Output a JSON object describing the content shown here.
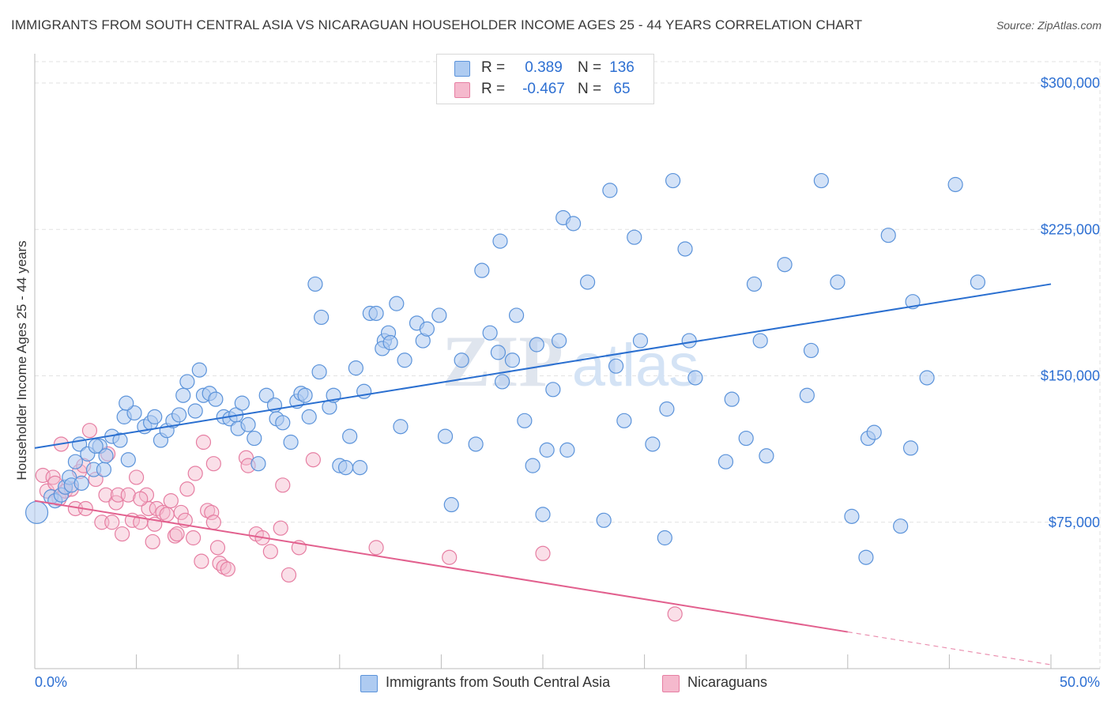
{
  "title": "IMMIGRANTS FROM SOUTH CENTRAL ASIA VS NICARAGUAN HOUSEHOLDER INCOME AGES 25 - 44 YEARS CORRELATION CHART",
  "source": "Source: ZipAtlas.com",
  "watermark": {
    "zip": "ZIP",
    "atlas": "atlas"
  },
  "legend_top": {
    "rows": [
      {
        "r_label": "R =",
        "r_value": "0.389",
        "n_label": "N =",
        "n_value": "136"
      },
      {
        "r_label": "R =",
        "r_value": "-0.467",
        "n_label": "N =",
        "n_value": "65"
      }
    ]
  },
  "legend_bottom": [
    {
      "label": "Immigrants from South Central Asia"
    },
    {
      "label": "Nicaraguans"
    }
  ],
  "colors": {
    "blue_fill": "#aecbf1",
    "blue_stroke": "#5b93da",
    "blue_line": "#2a6fd0",
    "pink_fill": "#f5b9cd",
    "pink_stroke": "#e67ea2",
    "pink_line": "#e2608e",
    "tick_text": "#2d6fd2",
    "grid": "#e2e2e2"
  },
  "chart_data": {
    "type": "scatter",
    "title": "IMMIGRANTS FROM SOUTH CENTRAL ASIA VS NICARAGUAN HOUSEHOLDER INCOME AGES 25 - 44 YEARS CORRELATION CHART",
    "xlabel": "",
    "ylabel": "Householder Income Ages 25 - 44 years",
    "xlim": [
      0,
      50
    ],
    "ylim": [
      0,
      315000
    ],
    "x_tick_labels": [
      {
        "value": 0,
        "label": "0.0%"
      },
      {
        "value": 50,
        "label": "50.0%"
      }
    ],
    "y_ticks": [
      {
        "value": 75000,
        "label": "$75,000"
      },
      {
        "value": 150000,
        "label": "$150,000"
      },
      {
        "value": 225000,
        "label": "$225,000"
      },
      {
        "value": 300000,
        "label": "$300,000"
      }
    ],
    "grid": true,
    "legend_position": "top-center",
    "series": [
      {
        "name": "Immigrants from South Central Asia",
        "color": "blue",
        "trend": {
          "x": [
            0,
            50
          ],
          "y": [
            113000,
            197000
          ]
        },
        "points": [
          [
            0.1,
            80000
          ],
          [
            0.8,
            88000
          ],
          [
            1.0,
            86000
          ],
          [
            1.3,
            89000
          ],
          [
            1.5,
            93000
          ],
          [
            1.7,
            98000
          ],
          [
            1.8,
            94000
          ],
          [
            2.0,
            106000
          ],
          [
            2.2,
            115000
          ],
          [
            2.3,
            95000
          ],
          [
            2.6,
            110000
          ],
          [
            2.9,
            102000
          ],
          [
            3.2,
            114000
          ],
          [
            3.4,
            102000
          ],
          [
            3.0,
            114000
          ],
          [
            3.5,
            109000
          ],
          [
            3.8,
            119000
          ],
          [
            4.2,
            117000
          ],
          [
            4.4,
            129000
          ],
          [
            4.6,
            107000
          ],
          [
            4.9,
            131000
          ],
          [
            4.5,
            136000
          ],
          [
            5.4,
            124000
          ],
          [
            5.7,
            126000
          ],
          [
            5.9,
            129000
          ],
          [
            6.2,
            117000
          ],
          [
            6.5,
            122000
          ],
          [
            6.8,
            127000
          ],
          [
            7.1,
            130000
          ],
          [
            7.3,
            140000
          ],
          [
            7.5,
            147000
          ],
          [
            7.9,
            132000
          ],
          [
            8.1,
            153000
          ],
          [
            8.3,
            140000
          ],
          [
            8.6,
            141000
          ],
          [
            8.9,
            138000
          ],
          [
            9.3,
            129000
          ],
          [
            9.6,
            128000
          ],
          [
            9.9,
            130000
          ],
          [
            10.0,
            123000
          ],
          [
            10.2,
            136000
          ],
          [
            10.5,
            125000
          ],
          [
            10.8,
            118000
          ],
          [
            11.0,
            105000
          ],
          [
            11.4,
            140000
          ],
          [
            11.8,
            135000
          ],
          [
            11.9,
            128000
          ],
          [
            12.2,
            126000
          ],
          [
            12.6,
            116000
          ],
          [
            12.9,
            137000
          ],
          [
            13.1,
            141000
          ],
          [
            13.3,
            140000
          ],
          [
            13.5,
            129000
          ],
          [
            13.8,
            197000
          ],
          [
            14.0,
            152000
          ],
          [
            14.1,
            180000
          ],
          [
            14.5,
            134000
          ],
          [
            14.7,
            140000
          ],
          [
            15.0,
            104000
          ],
          [
            15.3,
            103000
          ],
          [
            15.5,
            119000
          ],
          [
            15.8,
            154000
          ],
          [
            16.0,
            103000
          ],
          [
            16.2,
            142000
          ],
          [
            16.5,
            182000
          ],
          [
            16.8,
            182000
          ],
          [
            17.2,
            168000
          ],
          [
            17.4,
            172000
          ],
          [
            17.8,
            187000
          ],
          [
            17.1,
            164000
          ],
          [
            18.0,
            124000
          ],
          [
            18.2,
            158000
          ],
          [
            18.8,
            177000
          ],
          [
            19.1,
            168000
          ],
          [
            19.3,
            174000
          ],
          [
            19.9,
            181000
          ],
          [
            17.5,
            167000
          ],
          [
            20.2,
            119000
          ],
          [
            20.5,
            84000
          ],
          [
            21.0,
            158000
          ],
          [
            21.7,
            115000
          ],
          [
            22.0,
            204000
          ],
          [
            22.4,
            172000
          ],
          [
            22.9,
            219000
          ],
          [
            23.0,
            147000
          ],
          [
            22.8,
            162000
          ],
          [
            23.5,
            158000
          ],
          [
            23.7,
            181000
          ],
          [
            24.1,
            127000
          ],
          [
            24.5,
            104000
          ],
          [
            24.7,
            166000
          ],
          [
            25.0,
            79000
          ],
          [
            25.2,
            112000
          ],
          [
            25.5,
            143000
          ],
          [
            25.8,
            168000
          ],
          [
            26.0,
            231000
          ],
          [
            26.2,
            112000
          ],
          [
            26.5,
            228000
          ],
          [
            27.2,
            198000
          ],
          [
            28.0,
            76000
          ],
          [
            28.3,
            245000
          ],
          [
            28.6,
            155000
          ],
          [
            29.0,
            127000
          ],
          [
            29.5,
            221000
          ],
          [
            29.8,
            168000
          ],
          [
            30.4,
            115000
          ],
          [
            31.0,
            67000
          ],
          [
            31.1,
            133000
          ],
          [
            31.4,
            250000
          ],
          [
            32.0,
            215000
          ],
          [
            32.2,
            168000
          ],
          [
            32.5,
            149000
          ],
          [
            34.0,
            106000
          ],
          [
            34.3,
            138000
          ],
          [
            35.0,
            118000
          ],
          [
            35.4,
            197000
          ],
          [
            35.7,
            168000
          ],
          [
            36.0,
            109000
          ],
          [
            36.9,
            207000
          ],
          [
            38.0,
            140000
          ],
          [
            38.2,
            163000
          ],
          [
            38.7,
            250000
          ],
          [
            39.5,
            198000
          ],
          [
            40.2,
            78000
          ],
          [
            40.9,
            57000
          ],
          [
            41.0,
            118000
          ],
          [
            41.3,
            121000
          ],
          [
            42.0,
            222000
          ],
          [
            42.6,
            73000
          ],
          [
            43.1,
            113000
          ],
          [
            43.2,
            188000
          ],
          [
            43.9,
            149000
          ],
          [
            45.3,
            248000
          ],
          [
            46.4,
            198000
          ]
        ]
      },
      {
        "name": "Nicaraguans",
        "color": "pink",
        "trend": {
          "x": [
            0,
            50
          ],
          "y": [
            86000,
            2000
          ]
        },
        "trend_solid_until_x": 40,
        "points": [
          [
            0.4,
            99000
          ],
          [
            0.6,
            91000
          ],
          [
            0.9,
            98000
          ],
          [
            1.0,
            95000
          ],
          [
            1.2,
            87000
          ],
          [
            1.3,
            115000
          ],
          [
            1.5,
            91000
          ],
          [
            1.8,
            92000
          ],
          [
            2.0,
            82000
          ],
          [
            2.2,
            101000
          ],
          [
            2.5,
            82000
          ],
          [
            2.7,
            122000
          ],
          [
            3.0,
            97000
          ],
          [
            3.3,
            75000
          ],
          [
            3.6,
            110000
          ],
          [
            3.5,
            89000
          ],
          [
            3.8,
            75000
          ],
          [
            4.0,
            85000
          ],
          [
            4.3,
            69000
          ],
          [
            4.1,
            89000
          ],
          [
            4.6,
            89000
          ],
          [
            4.8,
            76000
          ],
          [
            5.0,
            98000
          ],
          [
            5.2,
            75000
          ],
          [
            5.5,
            89000
          ],
          [
            5.6,
            82000
          ],
          [
            5.8,
            65000
          ],
          [
            5.9,
            74000
          ],
          [
            6.0,
            82000
          ],
          [
            6.3,
            80000
          ],
          [
            6.5,
            79000
          ],
          [
            6.7,
            86000
          ],
          [
            6.9,
            68000
          ],
          [
            7.0,
            69000
          ],
          [
            7.2,
            80000
          ],
          [
            7.4,
            76000
          ],
          [
            7.5,
            92000
          ],
          [
            7.8,
            67000
          ],
          [
            7.9,
            100000
          ],
          [
            8.2,
            55000
          ],
          [
            8.3,
            116000
          ],
          [
            8.5,
            81000
          ],
          [
            8.8,
            105000
          ],
          [
            8.7,
            80000
          ],
          [
            9.1,
            54000
          ],
          [
            9.3,
            52000
          ],
          [
            9.5,
            51000
          ],
          [
            8.8,
            75000
          ],
          [
            9.0,
            62000
          ],
          [
            10.4,
            108000
          ],
          [
            10.5,
            104000
          ],
          [
            10.9,
            69000
          ],
          [
            11.2,
            67000
          ],
          [
            11.6,
            60000
          ],
          [
            12.1,
            72000
          ],
          [
            12.2,
            94000
          ],
          [
            12.5,
            48000
          ],
          [
            13.0,
            62000
          ],
          [
            13.7,
            107000
          ],
          [
            20.4,
            57000
          ],
          [
            16.8,
            62000
          ],
          [
            25.0,
            59000
          ],
          [
            31.5,
            28000
          ],
          [
            5.2,
            87000
          ],
          [
            2.4,
            104000
          ]
        ]
      }
    ]
  }
}
